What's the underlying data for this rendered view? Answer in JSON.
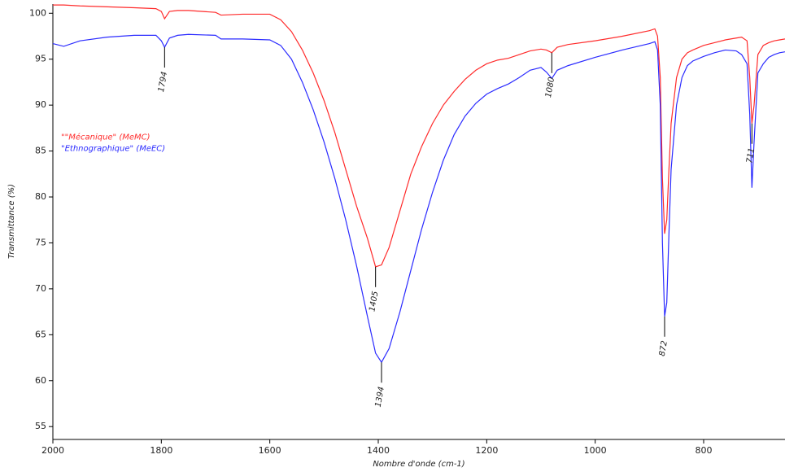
{
  "chart_data": {
    "type": "line",
    "x_label": "Nombre d'onde (cm-1)",
    "y_label": "Transmittance (%)",
    "x": [
      2000,
      1980,
      1950,
      1900,
      1850,
      1810,
      1800,
      1794,
      1785,
      1770,
      1750,
      1700,
      1690,
      1650,
      1600,
      1580,
      1560,
      1540,
      1520,
      1500,
      1480,
      1460,
      1440,
      1420,
      1405,
      1394,
      1380,
      1360,
      1340,
      1320,
      1300,
      1280,
      1260,
      1240,
      1220,
      1200,
      1180,
      1160,
      1140,
      1120,
      1100,
      1090,
      1080,
      1070,
      1050,
      1000,
      950,
      900,
      890,
      885,
      880,
      876,
      872,
      868,
      864,
      860,
      850,
      840,
      830,
      820,
      800,
      780,
      760,
      740,
      730,
      720,
      715,
      711,
      707,
      700,
      690,
      680,
      670,
      660,
      650
    ],
    "series": [
      {
        "name": "\"\"Mécanique\" (MeMC)",
        "color": "#ff2b2b",
        "values": [
          100.9,
          100.9,
          100.8,
          100.7,
          100.6,
          100.5,
          100.2,
          99.4,
          100.2,
          100.3,
          100.3,
          100.1,
          99.8,
          99.9,
          99.9,
          99.3,
          98,
          96,
          93.5,
          90.5,
          87,
          83,
          79,
          75.5,
          72.4,
          72.6,
          74.5,
          78.5,
          82.5,
          85.5,
          88,
          90,
          91.5,
          92.8,
          93.8,
          94.5,
          94.9,
          95.1,
          95.5,
          95.9,
          96.1,
          96,
          95.7,
          96.3,
          96.6,
          97,
          97.5,
          98.1,
          98.3,
          97.5,
          93,
          82,
          76,
          77.5,
          83,
          88,
          93,
          95,
          95.7,
          96,
          96.5,
          96.8,
          97.1,
          97.3,
          97.4,
          97,
          93,
          88,
          90,
          95.5,
          96.5,
          96.8,
          97,
          97.1,
          97.2
        ]
      },
      {
        "name": "\"Ethnographique\" (MeEC)",
        "color": "#2b2bff",
        "values": [
          96.7,
          96.4,
          97,
          97.4,
          97.6,
          97.6,
          97,
          96.3,
          97.3,
          97.6,
          97.7,
          97.6,
          97.2,
          97.2,
          97.1,
          96.5,
          95,
          92.5,
          89.5,
          86,
          82,
          77.5,
          72.5,
          67,
          63,
          62,
          63.5,
          67.5,
          72,
          76.5,
          80.5,
          84,
          86.8,
          88.8,
          90.2,
          91.2,
          91.8,
          92.3,
          93,
          93.8,
          94.1,
          93.6,
          92.9,
          93.8,
          94.3,
          95.2,
          96,
          96.7,
          96.9,
          96,
          90,
          75,
          67,
          68.5,
          76,
          83,
          90,
          93,
          94.3,
          94.8,
          95.3,
          95.7,
          96,
          95.9,
          95.5,
          94.5,
          89,
          81,
          86,
          93.5,
          94.5,
          95.2,
          95.5,
          95.7,
          95.8
        ]
      }
    ],
    "annotations": [
      {
        "label": "1794",
        "x": 1794,
        "y": 96.3,
        "dir": "down"
      },
      {
        "label": "1405",
        "x": 1405,
        "y": 72.4,
        "dir": "down"
      },
      {
        "label": "1394",
        "x": 1394,
        "y": 62,
        "dir": "down"
      },
      {
        "label": "1080",
        "x": 1080,
        "y": 95.7,
        "dir": "down"
      },
      {
        "label": "872",
        "x": 872,
        "y": 67,
        "dir": "down"
      },
      {
        "label": "711",
        "x": 711,
        "y": 88,
        "dir": "down"
      }
    ],
    "xlim": [
      2000,
      650
    ],
    "ylim": [
      53.6,
      101
    ],
    "xticks": [
      2000,
      1800,
      1600,
      1400,
      1200,
      1000,
      800
    ],
    "yticks": [
      55,
      60,
      65,
      70,
      75,
      80,
      85,
      90,
      95,
      100
    ],
    "legend": "left"
  }
}
